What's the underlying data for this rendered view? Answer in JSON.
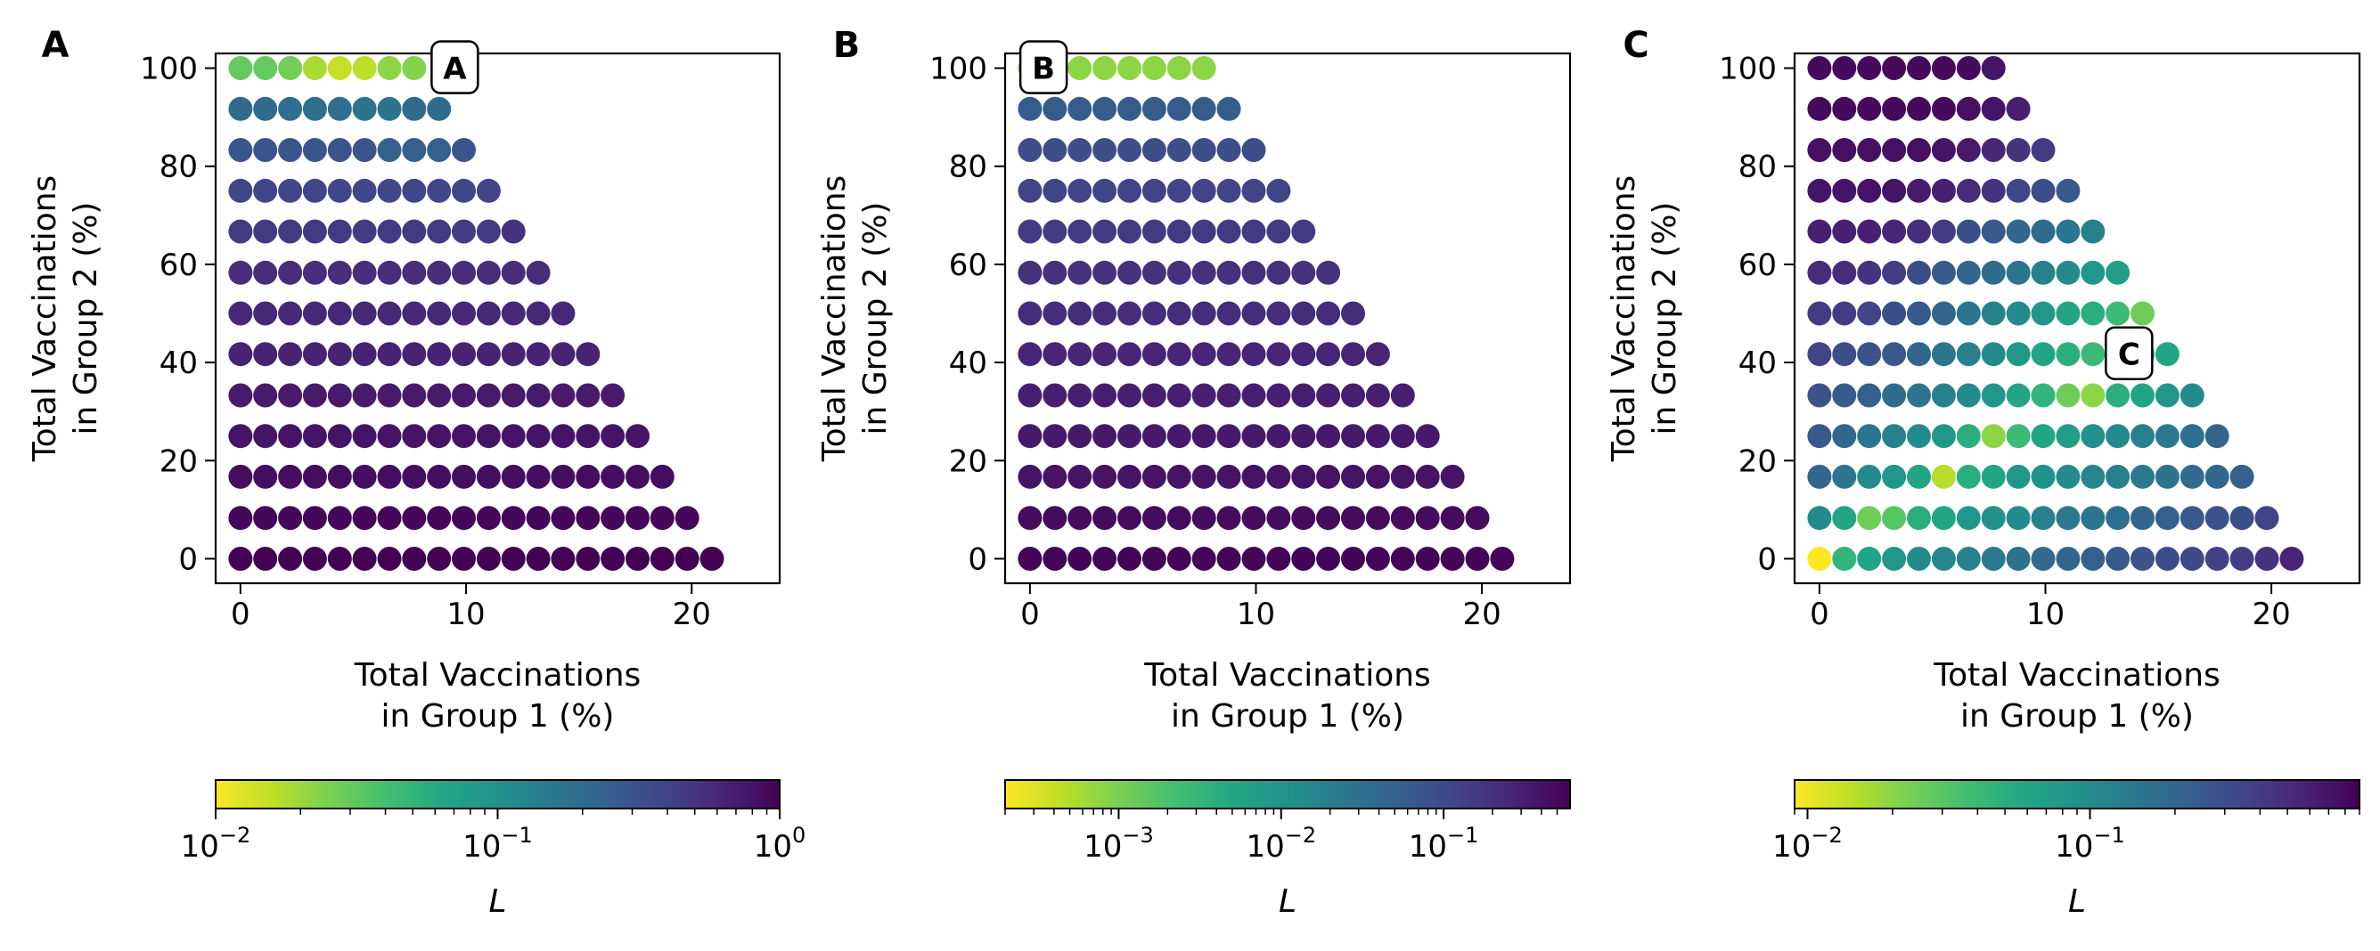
{
  "figure": {
    "panel_letters": [
      "A",
      "B",
      "C"
    ]
  },
  "chart_data": [
    {
      "type": "scatter",
      "panel": "A",
      "marker_label": "A",
      "marker_at": {
        "x": 9.5,
        "y": 100
      },
      "xlabel_lines": [
        "Total Vaccinations",
        "in Group 1 (%)"
      ],
      "ylabel_lines": [
        "Total Vaccinations",
        "in Group 2 (%)"
      ],
      "xlim": [
        -1.1,
        23.9
      ],
      "ylim": [
        -5,
        103
      ],
      "xticks": [
        0,
        10,
        20
      ],
      "yticks": [
        0,
        20,
        40,
        60,
        80,
        100
      ],
      "x_step": 1.1,
      "y_rows": [
        100,
        91.7,
        83.3,
        75,
        66.7,
        58.3,
        50,
        41.7,
        33.3,
        25,
        16.7,
        8.3,
        0
      ],
      "points_per_row": [
        8,
        9,
        10,
        11,
        12,
        13,
        14,
        15,
        16,
        17,
        18,
        19,
        20
      ],
      "colorbar": {
        "label": "L",
        "scale": "log",
        "range": [
          0.01,
          1
        ],
        "colormap": "viridis_r",
        "tick_values": [
          0.01,
          0.1,
          1
        ],
        "tick_mantissa": [
          "10",
          "10",
          "10"
        ],
        "tick_exponent": [
          "−2",
          "−1",
          "0"
        ]
      },
      "value_rows": [
        [
          0.03,
          0.03,
          0.027,
          0.018,
          0.015,
          0.016,
          0.022,
          0.024
        ],
        [
          0.2,
          0.2,
          0.19,
          0.19,
          0.19,
          0.17,
          0.17,
          0.2,
          0.2
        ],
        [
          0.3,
          0.3,
          0.3,
          0.3,
          0.3,
          0.3,
          0.25,
          0.25,
          0.25,
          0.3
        ],
        [
          0.38,
          0.38,
          0.38,
          0.38,
          0.38,
          0.38,
          0.38,
          0.38,
          0.38,
          0.38,
          0.4
        ],
        [
          0.45,
          0.45,
          0.45,
          0.45,
          0.45,
          0.45,
          0.45,
          0.45,
          0.45,
          0.45,
          0.45,
          0.5
        ],
        [
          0.55,
          0.55,
          0.55,
          0.55,
          0.55,
          0.55,
          0.55,
          0.55,
          0.55,
          0.55,
          0.55,
          0.55,
          0.55
        ],
        [
          0.6,
          0.6,
          0.6,
          0.6,
          0.6,
          0.6,
          0.6,
          0.6,
          0.6,
          0.6,
          0.6,
          0.6,
          0.6,
          0.6
        ],
        [
          0.65,
          0.65,
          0.65,
          0.65,
          0.65,
          0.65,
          0.65,
          0.65,
          0.65,
          0.65,
          0.65,
          0.65,
          0.65,
          0.65,
          0.65
        ],
        [
          0.72,
          0.72,
          0.72,
          0.72,
          0.72,
          0.72,
          0.72,
          0.72,
          0.72,
          0.72,
          0.72,
          0.72,
          0.72,
          0.72,
          0.72,
          0.72
        ],
        [
          0.78,
          0.78,
          0.78,
          0.78,
          0.78,
          0.78,
          0.78,
          0.78,
          0.78,
          0.78,
          0.78,
          0.78,
          0.78,
          0.78,
          0.78,
          0.78,
          0.78
        ],
        [
          0.85,
          0.85,
          0.85,
          0.85,
          0.85,
          0.85,
          0.85,
          0.85,
          0.85,
          0.85,
          0.85,
          0.85,
          0.85,
          0.85,
          0.85,
          0.85,
          0.85,
          0.85
        ],
        [
          0.92,
          0.92,
          0.92,
          0.92,
          0.92,
          0.92,
          0.92,
          0.92,
          0.92,
          0.92,
          0.92,
          0.92,
          0.92,
          0.92,
          0.92,
          0.92,
          0.92,
          0.92,
          0.92
        ],
        [
          1.0,
          1.0,
          1.0,
          1.0,
          1.0,
          1.0,
          1.0,
          1.0,
          1.0,
          1.0,
          1.0,
          1.0,
          1.0,
          1.0,
          1.0,
          1.0,
          1.0,
          1.0,
          1.0,
          1.0
        ]
      ]
    },
    {
      "type": "scatter",
      "panel": "B",
      "marker_label": "B",
      "marker_at": {
        "x": 0.6,
        "y": 100
      },
      "xlabel_lines": [
        "Total Vaccinations",
        "in Group 1 (%)"
      ],
      "ylabel_lines": [
        "Total Vaccinations",
        "in Group 2 (%)"
      ],
      "xlim": [
        -1.1,
        23.9
      ],
      "ylim": [
        -5,
        103
      ],
      "xticks": [
        0,
        10,
        20
      ],
      "yticks": [
        0,
        20,
        40,
        60,
        80,
        100
      ],
      "x_step": 1.1,
      "y_rows": [
        100,
        91.7,
        83.3,
        75,
        66.7,
        58.3,
        50,
        41.7,
        33.3,
        25,
        16.7,
        8.3,
        0
      ],
      "points_per_row": [
        8,
        9,
        10,
        11,
        12,
        13,
        14,
        15,
        16,
        17,
        18,
        19,
        20
      ],
      "colorbar": {
        "label": "L",
        "scale": "log",
        "range": [
          0.0002,
          0.6
        ],
        "colormap": "viridis_r",
        "tick_values": [
          0.001,
          0.01,
          0.1
        ],
        "tick_mantissa": [
          "10",
          "10",
          "10"
        ],
        "tick_exponent": [
          "−3",
          "−2",
          "−1"
        ]
      },
      "value_rows": [
        [
          0.0006,
          0.0007,
          0.0008,
          0.0008,
          0.0008,
          0.0008,
          0.0008,
          0.0008
        ],
        [
          0.06,
          0.06,
          0.06,
          0.06,
          0.06,
          0.06,
          0.06,
          0.06,
          0.06
        ],
        [
          0.09,
          0.09,
          0.09,
          0.09,
          0.09,
          0.09,
          0.09,
          0.09,
          0.09,
          0.09
        ],
        [
          0.12,
          0.12,
          0.12,
          0.12,
          0.12,
          0.12,
          0.12,
          0.12,
          0.12,
          0.12,
          0.12
        ],
        [
          0.15,
          0.15,
          0.15,
          0.15,
          0.15,
          0.15,
          0.15,
          0.15,
          0.15,
          0.15,
          0.15,
          0.15
        ],
        [
          0.19,
          0.19,
          0.19,
          0.19,
          0.19,
          0.19,
          0.19,
          0.19,
          0.19,
          0.19,
          0.19,
          0.19,
          0.19
        ],
        [
          0.22,
          0.22,
          0.22,
          0.22,
          0.22,
          0.22,
          0.22,
          0.22,
          0.22,
          0.22,
          0.22,
          0.22,
          0.22,
          0.22
        ],
        [
          0.26,
          0.26,
          0.26,
          0.26,
          0.26,
          0.26,
          0.26,
          0.26,
          0.26,
          0.26,
          0.26,
          0.26,
          0.26,
          0.26,
          0.26
        ],
        [
          0.3,
          0.3,
          0.3,
          0.3,
          0.3,
          0.3,
          0.3,
          0.3,
          0.3,
          0.3,
          0.3,
          0.3,
          0.3,
          0.3,
          0.3,
          0.3
        ],
        [
          0.35,
          0.35,
          0.35,
          0.35,
          0.35,
          0.35,
          0.35,
          0.35,
          0.35,
          0.35,
          0.35,
          0.35,
          0.35,
          0.35,
          0.35,
          0.35,
          0.35
        ],
        [
          0.4,
          0.4,
          0.4,
          0.4,
          0.4,
          0.4,
          0.4,
          0.4,
          0.4,
          0.4,
          0.4,
          0.4,
          0.4,
          0.4,
          0.4,
          0.4,
          0.4,
          0.4
        ],
        [
          0.48,
          0.48,
          0.48,
          0.48,
          0.48,
          0.48,
          0.48,
          0.48,
          0.48,
          0.48,
          0.48,
          0.48,
          0.48,
          0.48,
          0.48,
          0.48,
          0.48,
          0.48,
          0.48
        ],
        [
          0.55,
          0.55,
          0.55,
          0.55,
          0.55,
          0.55,
          0.55,
          0.55,
          0.55,
          0.55,
          0.55,
          0.55,
          0.55,
          0.55,
          0.55,
          0.55,
          0.55,
          0.55,
          0.55,
          0.55
        ]
      ]
    },
    {
      "type": "scatter",
      "panel": "C",
      "marker_label": "C",
      "marker_at": {
        "x": 13.7,
        "y": 41.7
      },
      "xlabel_lines": [
        "Total Vaccinations",
        "in Group 1 (%)"
      ],
      "ylabel_lines": [
        "Total Vaccinations",
        "in Group 2 (%)"
      ],
      "xlim": [
        -1.1,
        23.9
      ],
      "ylim": [
        -5,
        103
      ],
      "xticks": [
        0,
        10,
        20
      ],
      "yticks": [
        0,
        20,
        40,
        60,
        80,
        100
      ],
      "x_step": 1.1,
      "y_rows": [
        100,
        91.7,
        83.3,
        75,
        66.7,
        58.3,
        50,
        41.7,
        33.3,
        25,
        16.7,
        8.3,
        0
      ],
      "points_per_row": [
        8,
        9,
        10,
        11,
        12,
        13,
        14,
        15,
        16,
        17,
        18,
        19,
        20
      ],
      "colorbar": {
        "label": "L",
        "scale": "log",
        "range": [
          0.009,
          0.9
        ],
        "colormap": "viridis_r",
        "tick_values": [
          0.01,
          0.1
        ],
        "tick_mantissa": [
          "10",
          "10"
        ],
        "tick_exponent": [
          "−2",
          "−1"
        ]
      },
      "value_rows": [
        [
          0.8,
          0.8,
          0.8,
          0.8,
          0.8,
          0.8,
          0.8,
          0.7
        ],
        [
          0.8,
          0.8,
          0.8,
          0.8,
          0.8,
          0.8,
          0.75,
          0.7,
          0.6
        ],
        [
          0.75,
          0.75,
          0.75,
          0.75,
          0.75,
          0.7,
          0.65,
          0.55,
          0.45,
          0.4
        ],
        [
          0.7,
          0.7,
          0.7,
          0.7,
          0.65,
          0.6,
          0.5,
          0.45,
          0.35,
          0.3,
          0.25
        ],
        [
          0.6,
          0.6,
          0.6,
          0.55,
          0.5,
          0.4,
          0.3,
          0.25,
          0.2,
          0.18,
          0.15,
          0.12
        ],
        [
          0.5,
          0.5,
          0.45,
          0.4,
          0.3,
          0.25,
          0.2,
          0.18,
          0.15,
          0.12,
          0.1,
          0.08,
          0.07
        ],
        [
          0.4,
          0.4,
          0.35,
          0.3,
          0.25,
          0.2,
          0.15,
          0.12,
          0.1,
          0.08,
          0.06,
          0.05,
          0.04,
          0.025
        ],
        [
          0.35,
          0.3,
          0.28,
          0.25,
          0.2,
          0.15,
          0.12,
          0.1,
          0.08,
          0.06,
          0.05,
          0.04,
          0.04,
          0.05,
          0.06
        ],
        [
          0.28,
          0.25,
          0.22,
          0.18,
          0.15,
          0.12,
          0.1,
          0.08,
          0.06,
          0.045,
          0.025,
          0.02,
          0.05,
          0.06,
          0.08,
          0.1
        ],
        [
          0.25,
          0.2,
          0.15,
          0.12,
          0.1,
          0.08,
          0.05,
          0.02,
          0.04,
          0.06,
          0.07,
          0.09,
          0.1,
          0.12,
          0.14,
          0.17,
          0.2
        ],
        [
          0.2,
          0.15,
          0.1,
          0.08,
          0.06,
          0.015,
          0.05,
          0.06,
          0.08,
          0.09,
          0.1,
          0.11,
          0.12,
          0.14,
          0.16,
          0.18,
          0.2,
          0.22
        ],
        [
          0.1,
          0.06,
          0.025,
          0.03,
          0.05,
          0.06,
          0.08,
          0.09,
          0.1,
          0.12,
          0.14,
          0.15,
          0.17,
          0.2,
          0.22,
          0.25,
          0.28,
          0.3,
          0.35
        ],
        [
          0.009,
          0.045,
          0.06,
          0.08,
          0.1,
          0.11,
          0.12,
          0.14,
          0.16,
          0.18,
          0.2,
          0.22,
          0.25,
          0.28,
          0.3,
          0.33,
          0.37,
          0.4,
          0.45,
          0.55
        ]
      ]
    }
  ]
}
